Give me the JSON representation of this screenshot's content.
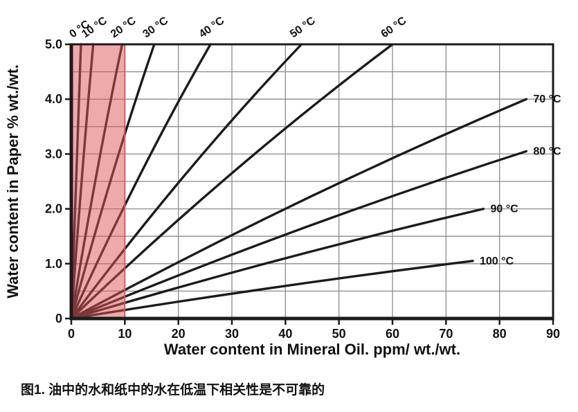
{
  "figure": {
    "caption": "图1. 油中的水和纸中的水在低温下相关性是不可靠的"
  },
  "chart_data": {
    "type": "line",
    "title": "",
    "xlabel": "Water content in Mineral Oil. ppm/ wt./wt.",
    "ylabel": "Water content in Paper % wt./wt.",
    "xlim": [
      0,
      90
    ],
    "ylim": [
      0,
      5
    ],
    "x_ticks": [
      0,
      10,
      20,
      30,
      40,
      50,
      60,
      70,
      80,
      90
    ],
    "y_ticks": [
      0,
      1,
      2,
      3,
      4,
      5
    ],
    "y_tick_labels": [
      "0",
      "1.0",
      "2.0",
      "3.0",
      "4.0",
      "5.0"
    ],
    "x_grid_step": 10,
    "y_grid_step": 0.5,
    "grid": true,
    "legend_position": "inline-labels",
    "line_color": "#1b1b1b",
    "grid_color": "#8a8a8a",
    "highlight_region": {
      "x_range": [
        0,
        10
      ],
      "fill": "#dd5555",
      "opacity": 0.5
    },
    "series": [
      {
        "name": "0 °C",
        "label_side": "top",
        "points": [
          [
            0,
            0
          ],
          [
            0.9,
            2.65
          ],
          [
            1.8,
            5.0
          ]
        ]
      },
      {
        "name": "10 °C",
        "label_side": "top",
        "points": [
          [
            0,
            0
          ],
          [
            2.05,
            2.65
          ],
          [
            4.1,
            5.0
          ]
        ]
      },
      {
        "name": "20 °C",
        "label_side": "top",
        "points": [
          [
            0,
            0
          ],
          [
            4.75,
            2.65
          ],
          [
            9.5,
            5.0
          ]
        ]
      },
      {
        "name": "30 °C",
        "label_side": "top",
        "points": [
          [
            0,
            0
          ],
          [
            7.75,
            2.65
          ],
          [
            15.5,
            5.0
          ]
        ]
      },
      {
        "name": "40 °C",
        "label_side": "top",
        "points": [
          [
            0,
            0
          ],
          [
            13,
            2.65
          ],
          [
            26,
            5.0
          ]
        ]
      },
      {
        "name": "50 °C",
        "label_side": "top",
        "points": [
          [
            0,
            0
          ],
          [
            21.5,
            2.65
          ],
          [
            43,
            5.0
          ]
        ]
      },
      {
        "name": "60 °C",
        "label_side": "top",
        "points": [
          [
            0,
            0
          ],
          [
            30,
            2.65
          ],
          [
            60,
            5.0
          ]
        ]
      },
      {
        "name": "70 °C",
        "label_side": "right",
        "points": [
          [
            0,
            0
          ],
          [
            42.5,
            2.12
          ],
          [
            85,
            4.0
          ]
        ]
      },
      {
        "name": "80 °C",
        "label_side": "right",
        "points": [
          [
            0,
            0
          ],
          [
            42.5,
            1.62
          ],
          [
            85,
            3.05
          ]
        ]
      },
      {
        "name": "90 °C",
        "label_side": "right",
        "points": [
          [
            0,
            0
          ],
          [
            38.5,
            1.06
          ],
          [
            77,
            2.0
          ]
        ]
      },
      {
        "name": "100 °C",
        "label_side": "right",
        "points": [
          [
            0,
            0
          ],
          [
            37.5,
            0.56
          ],
          [
            75,
            1.05
          ]
        ]
      }
    ]
  }
}
